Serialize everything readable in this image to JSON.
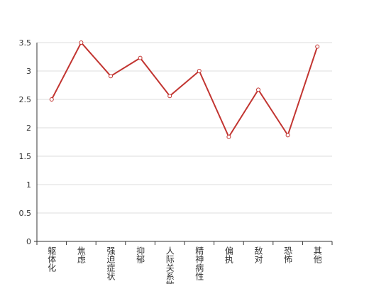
{
  "chart_data": {
    "type": "line",
    "categories": [
      "躯体化",
      "焦虑",
      "强迫症状",
      "抑郁",
      "人际关系敏感",
      "精神病性",
      "偏执",
      "敌对",
      "恐怖",
      "其他"
    ],
    "values": [
      2.5,
      3.5,
      2.91,
      3.23,
      2.56,
      3.0,
      1.84,
      2.67,
      1.87,
      3.43
    ],
    "color": "#c23531",
    "ylim": [
      0,
      3.5
    ],
    "yticks": [
      0,
      0.5,
      1,
      1.5,
      2,
      2.5,
      3,
      3.5
    ],
    "grid": true
  }
}
